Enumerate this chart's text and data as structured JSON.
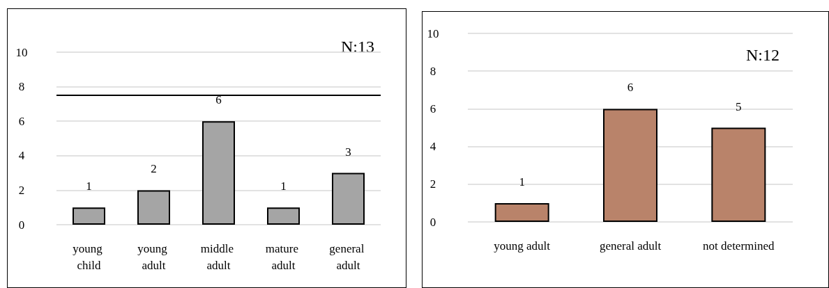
{
  "chart_data": [
    {
      "type": "bar",
      "categories": [
        "young child",
        "young adult",
        "middle adult",
        "mature adult",
        "general adult"
      ],
      "values": [
        1,
        2,
        6,
        1,
        3
      ],
      "color": "#a5a5a5",
      "ylim": [
        0,
        10
      ],
      "yticks": [
        0,
        2,
        4,
        6,
        8,
        10
      ],
      "grid": "y",
      "data_labels": true,
      "annotations": [
        "N:13"
      ],
      "ref_lines": [
        {
          "axis": "y",
          "value": 7.5,
          "color": "#000000"
        }
      ]
    },
    {
      "type": "bar",
      "categories": [
        "young adult",
        "general adult",
        "not determined"
      ],
      "values": [
        1,
        6,
        5
      ],
      "color": "#b9836a",
      "ylim": [
        0,
        10
      ],
      "yticks": [
        0,
        2,
        4,
        6,
        8,
        10
      ],
      "grid": "y",
      "data_labels": true,
      "annotations": [
        "N:12"
      ]
    }
  ]
}
